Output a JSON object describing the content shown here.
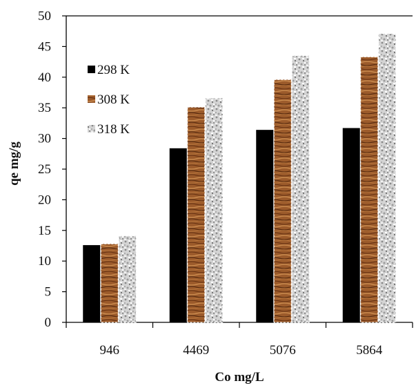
{
  "chart_data": {
    "type": "bar",
    "title": "",
    "xlabel": "Co mg/L",
    "ylabel": "qe mg/g",
    "categories": [
      "946",
      "4469",
      "5076",
      "5864"
    ],
    "series": [
      {
        "name": "298 K",
        "values": [
          12.6,
          28.4,
          31.4,
          31.7
        ],
        "color": "#000000",
        "pattern": "solid-black"
      },
      {
        "name": "308 K",
        "values": [
          12.8,
          35.1,
          39.6,
          43.3
        ],
        "color": "#9a5a2a",
        "pattern": "wood-grain"
      },
      {
        "name": "318 K",
        "values": [
          14.1,
          36.6,
          43.5,
          47.1
        ],
        "color": "#c8c8c8",
        "pattern": "granite"
      }
    ],
    "ylim": [
      0,
      50
    ],
    "yticks": [
      "0",
      "5",
      "10",
      "15",
      "20",
      "25",
      "30",
      "35",
      "40",
      "45",
      "50"
    ],
    "grid": false,
    "legend_position": "top-left"
  }
}
